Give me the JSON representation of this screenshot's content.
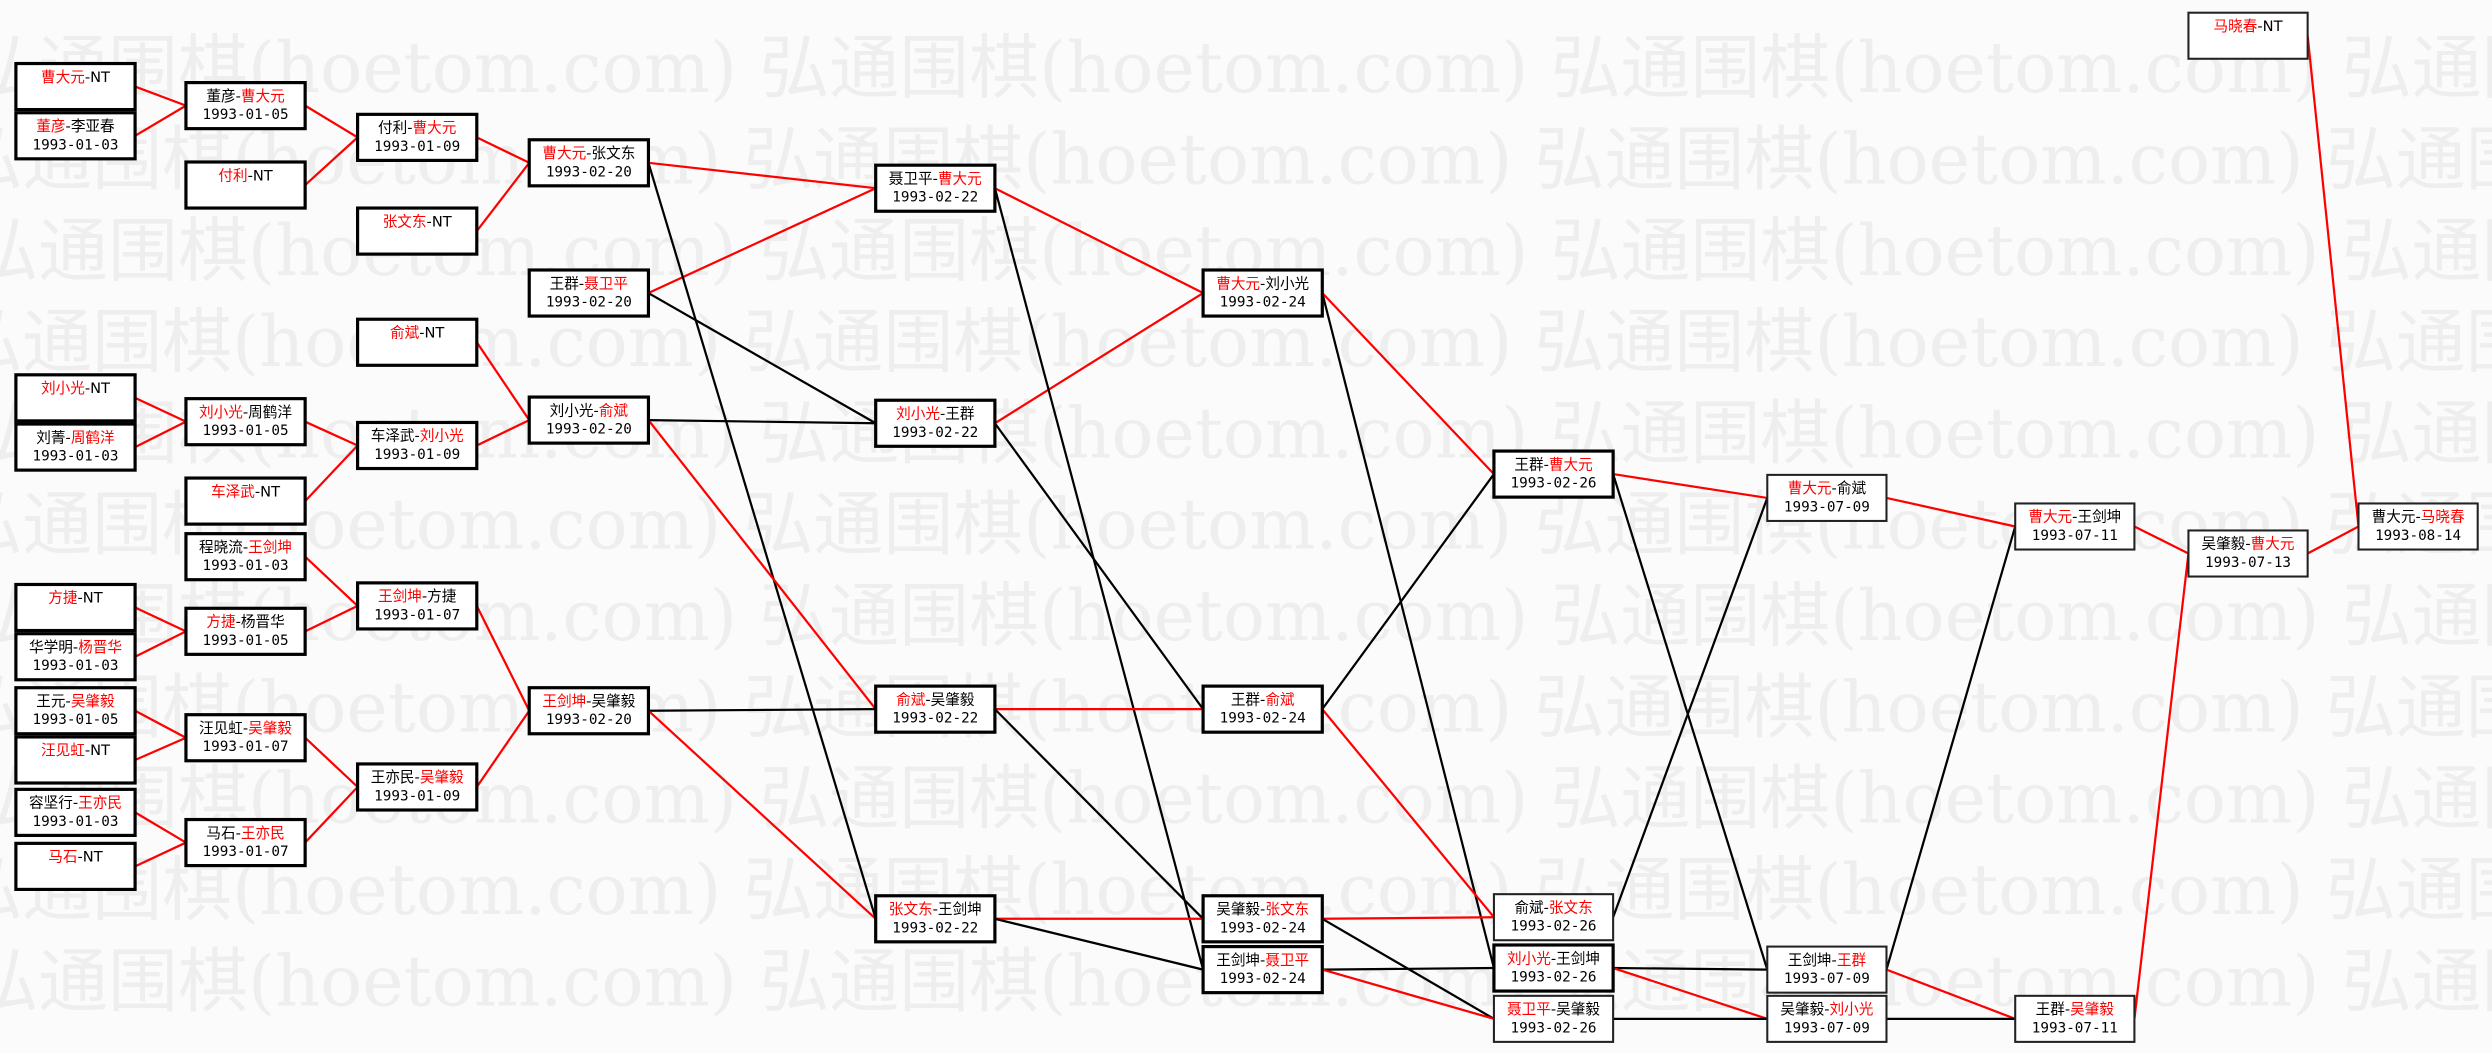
{
  "watermark": "弘通围棋(hoetom.com) 弘通围棋(hoetom.com) 弘通围棋(hoetom.com) 弘通围棋(hoetom.com)",
  "colors": {
    "winner": "#ff0000",
    "loser_path": "#000000",
    "winner_path": "#ff0000",
    "box_border": "#000000",
    "background": "#fbfbfb"
  },
  "matches": [
    {
      "id": "A1",
      "players": [
        "曹大元",
        "NT"
      ],
      "winner": 0,
      "date": ""
    },
    {
      "id": "A2",
      "players": [
        "董彦",
        "李亚春"
      ],
      "winner": 0,
      "date": "1993-01-03"
    },
    {
      "id": "A3",
      "players": [
        "刘小光",
        "NT"
      ],
      "winner": 0,
      "date": ""
    },
    {
      "id": "A4",
      "players": [
        "刘菁",
        "周鹤洋"
      ],
      "winner": 1,
      "date": "1993-01-03"
    },
    {
      "id": "A5",
      "players": [
        "方捷",
        "NT"
      ],
      "winner": 0,
      "date": ""
    },
    {
      "id": "A6",
      "players": [
        "华学明",
        "杨晋华"
      ],
      "winner": 1,
      "date": "1993-01-03"
    },
    {
      "id": "A7",
      "players": [
        "王元",
        "吴肇毅"
      ],
      "winner": 1,
      "date": "1993-01-05"
    },
    {
      "id": "A8",
      "players": [
        "汪见虹",
        "NT"
      ],
      "winner": 0,
      "date": ""
    },
    {
      "id": "A9",
      "players": [
        "容坚行",
        "王亦民"
      ],
      "winner": 1,
      "date": "1993-01-03"
    },
    {
      "id": "A10",
      "players": [
        "马石",
        "NT"
      ],
      "winner": 0,
      "date": ""
    },
    {
      "id": "B1",
      "players": [
        "董彦",
        "曹大元"
      ],
      "winner": 1,
      "date": "1993-01-05"
    },
    {
      "id": "B2",
      "players": [
        "付利",
        "NT"
      ],
      "winner": 0,
      "date": ""
    },
    {
      "id": "B3",
      "players": [
        "刘小光",
        "周鹤洋"
      ],
      "winner": 0,
      "date": "1993-01-05"
    },
    {
      "id": "B4",
      "players": [
        "车泽武",
        "NT"
      ],
      "winner": 0,
      "date": ""
    },
    {
      "id": "B5",
      "players": [
        "程晓流",
        "王剑坤"
      ],
      "winner": 1,
      "date": "1993-01-03"
    },
    {
      "id": "B6",
      "players": [
        "方捷",
        "杨晋华"
      ],
      "winner": 0,
      "date": "1993-01-05"
    },
    {
      "id": "B7",
      "players": [
        "汪见虹",
        "吴肇毅"
      ],
      "winner": 1,
      "date": "1993-01-07"
    },
    {
      "id": "B8",
      "players": [
        "马石",
        "王亦民"
      ],
      "winner": 1,
      "date": "1993-01-07"
    },
    {
      "id": "C1",
      "players": [
        "付利",
        "曹大元"
      ],
      "winner": 1,
      "date": "1993-01-09"
    },
    {
      "id": "C2",
      "players": [
        "张文东",
        "NT"
      ],
      "winner": 0,
      "date": ""
    },
    {
      "id": "C3",
      "players": [
        "俞斌",
        "NT"
      ],
      "winner": 0,
      "date": ""
    },
    {
      "id": "C4",
      "players": [
        "车泽武",
        "刘小光"
      ],
      "winner": 1,
      "date": "1993-01-09"
    },
    {
      "id": "C5",
      "players": [
        "王剑坤",
        "方捷"
      ],
      "winner": 0,
      "date": "1993-01-07"
    },
    {
      "id": "C6",
      "players": [
        "王亦民",
        "吴肇毅"
      ],
      "winner": 1,
      "date": "1993-01-09"
    },
    {
      "id": "D1",
      "players": [
        "曹大元",
        "张文东"
      ],
      "winner": 0,
      "date": "1993-02-20"
    },
    {
      "id": "D2",
      "players": [
        "王群",
        "聂卫平"
      ],
      "winner": 1,
      "date": "1993-02-20"
    },
    {
      "id": "D3",
      "players": [
        "刘小光",
        "俞斌"
      ],
      "winner": 1,
      "date": "1993-02-20"
    },
    {
      "id": "D4",
      "players": [
        "王剑坤",
        "吴肇毅"
      ],
      "winner": 0,
      "date": "1993-02-20"
    },
    {
      "id": "E1",
      "players": [
        "聂卫平",
        "曹大元"
      ],
      "winner": 1,
      "date": "1993-02-22"
    },
    {
      "id": "E2",
      "players": [
        "刘小光",
        "王群"
      ],
      "winner": 0,
      "date": "1993-02-22"
    },
    {
      "id": "E3",
      "players": [
        "俞斌",
        "吴肇毅"
      ],
      "winner": 0,
      "date": "1993-02-22"
    },
    {
      "id": "E4",
      "players": [
        "张文东",
        "王剑坤"
      ],
      "winner": 0,
      "date": "1993-02-22"
    },
    {
      "id": "F1",
      "players": [
        "曹大元",
        "刘小光"
      ],
      "winner": 0,
      "date": "1993-02-24"
    },
    {
      "id": "F2",
      "players": [
        "王群",
        "俞斌"
      ],
      "winner": 1,
      "date": "1993-02-24"
    },
    {
      "id": "F3",
      "players": [
        "吴肇毅",
        "张文东"
      ],
      "winner": 1,
      "date": "1993-02-24"
    },
    {
      "id": "F4",
      "players": [
        "王剑坤",
        "聂卫平"
      ],
      "winner": 1,
      "date": "1993-02-24"
    },
    {
      "id": "G1",
      "players": [
        "王群",
        "曹大元"
      ],
      "winner": 1,
      "date": "1993-02-26"
    },
    {
      "id": "G2",
      "players": [
        "俞斌",
        "张文东"
      ],
      "winner": 1,
      "date": "1993-02-26"
    },
    {
      "id": "G3",
      "players": [
        "刘小光",
        "王剑坤"
      ],
      "winner": 0,
      "date": "1993-02-26"
    },
    {
      "id": "G4",
      "players": [
        "聂卫平",
        "吴肇毅"
      ],
      "winner": 0,
      "date": "1993-02-26"
    },
    {
      "id": "H1",
      "players": [
        "曹大元",
        "俞斌"
      ],
      "winner": 0,
      "date": "1993-07-09"
    },
    {
      "id": "H2",
      "players": [
        "王剑坤",
        "王群"
      ],
      "winner": 1,
      "date": "1993-07-09"
    },
    {
      "id": "H3",
      "players": [
        "吴肇毅",
        "刘小光"
      ],
      "winner": 1,
      "date": "1993-07-09"
    },
    {
      "id": "I1",
      "players": [
        "曹大元",
        "王剑坤"
      ],
      "winner": 0,
      "date": "1993-07-11"
    },
    {
      "id": "I2",
      "players": [
        "王群",
        "吴肇毅"
      ],
      "winner": 1,
      "date": "1993-07-11"
    },
    {
      "id": "J0",
      "players": [
        "马晓春",
        "NT"
      ],
      "winner": 0,
      "date": ""
    },
    {
      "id": "J1",
      "players": [
        "吴肇毅",
        "曹大元"
      ],
      "winner": 1,
      "date": "1993-07-13"
    },
    {
      "id": "K1",
      "players": [
        "曹大元",
        "马晓春"
      ],
      "winner": 1,
      "date": "1993-08-14"
    }
  ],
  "edges": [
    [
      "A1",
      "B1",
      "winner"
    ],
    [
      "A2",
      "B1",
      "winner"
    ],
    [
      "B1",
      "C1",
      "winner"
    ],
    [
      "B2",
      "C1",
      "winner"
    ],
    [
      "C1",
      "D1",
      "winner"
    ],
    [
      "C2",
      "D1",
      "winner"
    ],
    [
      "A3",
      "B3",
      "winner"
    ],
    [
      "A4",
      "B3",
      "winner"
    ],
    [
      "B3",
      "C4",
      "winner"
    ],
    [
      "B4",
      "C4",
      "winner"
    ],
    [
      "C3",
      "D3",
      "winner"
    ],
    [
      "C4",
      "D3",
      "winner"
    ],
    [
      "B5",
      "C5",
      "winner"
    ],
    [
      "A5",
      "B6",
      "winner"
    ],
    [
      "A6",
      "B6",
      "winner"
    ],
    [
      "B6",
      "C5",
      "winner"
    ],
    [
      "A7",
      "B7",
      "winner"
    ],
    [
      "A8",
      "B7",
      "winner"
    ],
    [
      "A9",
      "B8",
      "winner"
    ],
    [
      "A10",
      "B8",
      "winner"
    ],
    [
      "B7",
      "C6",
      "winner"
    ],
    [
      "B8",
      "C6",
      "winner"
    ],
    [
      "C5",
      "D4",
      "winner"
    ],
    [
      "C6",
      "D4",
      "winner"
    ],
    [
      "D1",
      "E1",
      "winner"
    ],
    [
      "D2",
      "E1",
      "winner"
    ],
    [
      "D1",
      "E4",
      "loser"
    ],
    [
      "D2",
      "E2",
      "loser"
    ],
    [
      "D3",
      "E2",
      "loser"
    ],
    [
      "D3",
      "E3",
      "winner"
    ],
    [
      "D4",
      "E3",
      "loser"
    ],
    [
      "D4",
      "E4",
      "winner"
    ],
    [
      "E1",
      "F1",
      "winner"
    ],
    [
      "E2",
      "F1",
      "winner"
    ],
    [
      "E1",
      "F4",
      "loser"
    ],
    [
      "E2",
      "F2",
      "loser"
    ],
    [
      "E3",
      "F2",
      "winner"
    ],
    [
      "E3",
      "F3",
      "loser"
    ],
    [
      "E4",
      "F3",
      "winner"
    ],
    [
      "E4",
      "F4",
      "loser"
    ],
    [
      "F1",
      "G1",
      "winner"
    ],
    [
      "F1",
      "G3",
      "loser"
    ],
    [
      "F2",
      "G1",
      "loser"
    ],
    [
      "F2",
      "G2",
      "winner"
    ],
    [
      "F3",
      "G2",
      "winner"
    ],
    [
      "F3",
      "G4",
      "loser"
    ],
    [
      "F4",
      "G3",
      "loser"
    ],
    [
      "F4",
      "G4",
      "winner"
    ],
    [
      "G1",
      "H1",
      "winner"
    ],
    [
      "G1",
      "H2",
      "loser"
    ],
    [
      "G2",
      "H1",
      "loser"
    ],
    [
      "G3",
      "H2",
      "loser"
    ],
    [
      "G3",
      "H3",
      "winner"
    ],
    [
      "G4",
      "H3",
      "loser"
    ],
    [
      "H1",
      "I1",
      "winner"
    ],
    [
      "H2",
      "I1",
      "loser"
    ],
    [
      "H2",
      "I2",
      "winner"
    ],
    [
      "H3",
      "I2",
      "loser"
    ],
    [
      "I1",
      "J1",
      "winner"
    ],
    [
      "I2",
      "J1",
      "winner"
    ],
    [
      "J1",
      "K1",
      "winner"
    ],
    [
      "J0",
      "K1",
      "winner"
    ]
  ]
}
